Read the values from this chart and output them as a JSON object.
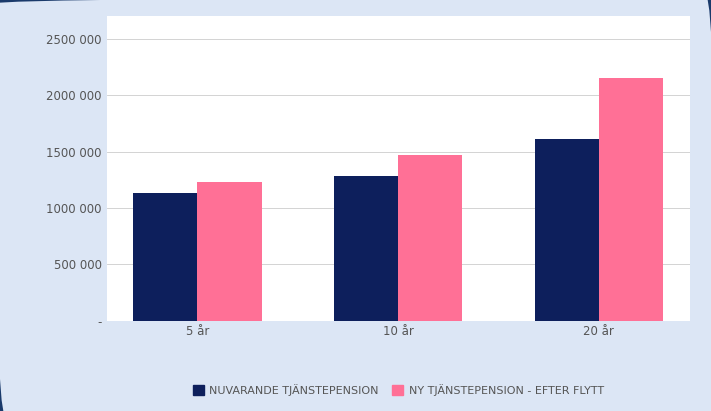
{
  "categories": [
    "5 år",
    "10 år",
    "20 år"
  ],
  "series": {
    "nuvarande": [
      1130000,
      1280000,
      1610000
    ],
    "efter_flytt": [
      1230000,
      1470000,
      2150000
    ]
  },
  "colors": {
    "nuvarande": "#0d1f5c",
    "efter_flytt": "#ff7096"
  },
  "legend_labels": [
    "NUVARANDE TJÄNSTEPENSION",
    "NY TJÄNSTEPENSION - EFTER FLYTT"
  ],
  "ylim": [
    0,
    2700000
  ],
  "yticks": [
    0,
    500000,
    1000000,
    1500000,
    2000000,
    2500000
  ],
  "ytick_labels": [
    "-",
    "500 000",
    "1000 000",
    "1500 000",
    "2000 000",
    "2500 000"
  ],
  "background_color": "#dce6f5",
  "plot_background_color": "#ffffff",
  "border_color": "#1a3a6b",
  "grid_color": "#cccccc",
  "bar_width": 0.32,
  "font_color": "#555555",
  "legend_fontsize": 8,
  "tick_fontsize": 8.5
}
